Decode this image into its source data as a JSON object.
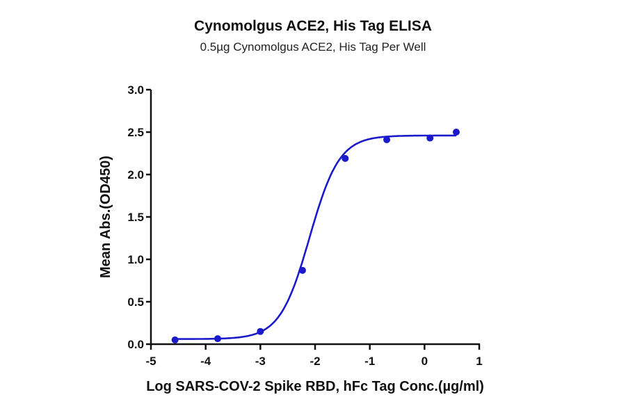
{
  "chart_data": {
    "type": "scatter",
    "title": "Cynomolgus ACE2, His Tag ELISA",
    "subtitle": "0.5µg Cynomolgus ACE2, His Tag Per Well",
    "xlabel": "Log SARS-COV-2 Spike RBD, hFc Tag Conc.(µg/ml)",
    "ylabel": "Mean Abs.(OD450)",
    "xlim": [
      -5,
      1
    ],
    "ylim": [
      0,
      3.0
    ],
    "xticks": [
      "-5",
      "-4",
      "-3",
      "-2",
      "-1",
      "0",
      "1"
    ],
    "yticks": [
      "0.0",
      "0.5",
      "1.0",
      "1.5",
      "2.0",
      "2.5",
      "3.0"
    ],
    "grid": false,
    "legend": null,
    "series": [
      {
        "name": "Cynomolgus ACE2, His Tag",
        "color": "#1a1acc",
        "x": [
          -4.56,
          -3.78,
          -3.0,
          -2.23,
          -1.45,
          -0.69,
          0.1,
          0.58
        ],
        "y": [
          0.05,
          0.065,
          0.15,
          0.87,
          2.19,
          2.41,
          2.43,
          2.5
        ],
        "fit": "4PL sigmoidal",
        "fit_params": {
          "bottom": 0.06,
          "top": 2.46,
          "logEC50": -2.1,
          "hill": 1.6
        }
      }
    ]
  }
}
